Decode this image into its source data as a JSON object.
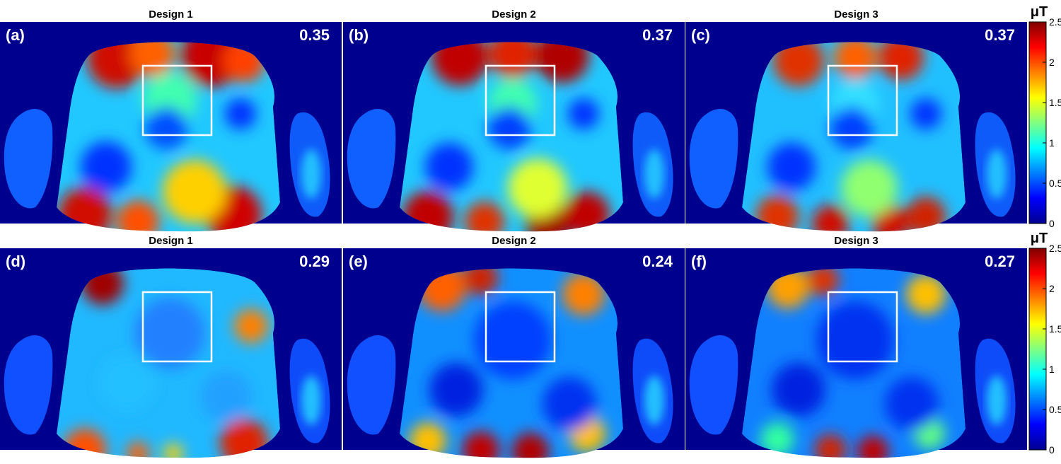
{
  "rows": [
    {
      "panels": [
        {
          "label": "(a)",
          "title": "Design 1",
          "value": "0.35"
        },
        {
          "label": "(b)",
          "title": "Design 2",
          "value": "0.37"
        },
        {
          "label": "(c)",
          "title": "Design 3",
          "value": "0.37"
        }
      ],
      "colorbar": {
        "unit": "μT",
        "ticks": [
          "2.5",
          "2",
          "1.5",
          "1",
          "0.5",
          "0"
        ]
      }
    },
    {
      "panels": [
        {
          "label": "(d)",
          "title": "Design 1",
          "value": "0.29"
        },
        {
          "label": "(e)",
          "title": "Design 2",
          "value": "0.24"
        },
        {
          "label": "(f)",
          "title": "Design 3",
          "value": "0.27"
        }
      ],
      "colorbar": {
        "unit": "μT",
        "ticks": [
          "2.5",
          "2",
          "1.5",
          "1",
          "0.5",
          "0"
        ]
      }
    }
  ],
  "colors": {
    "background_field": "#00008f",
    "roi_box": "#ffffff",
    "colormap": "jet"
  }
}
